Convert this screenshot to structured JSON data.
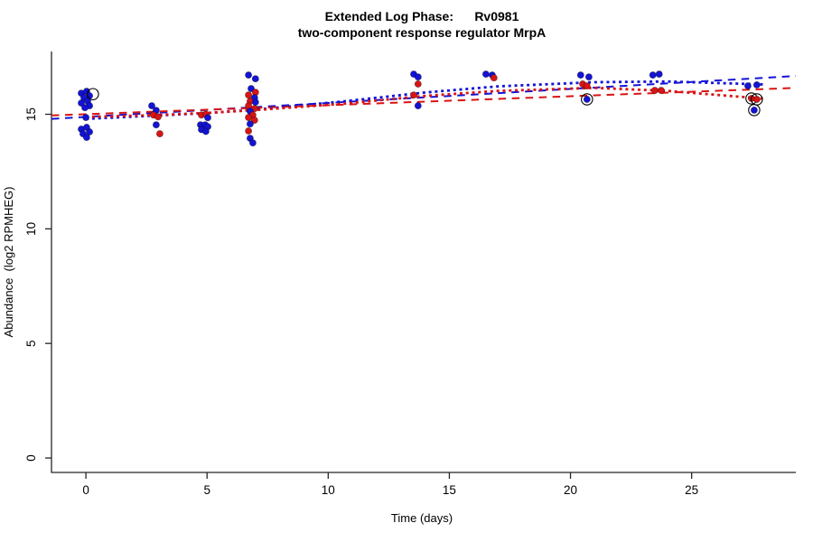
{
  "chart_data": {
    "type": "scatter",
    "title": "Extended Log Phase:      Rv0981",
    "subtitle": "two-component response regulator MrpA",
    "xlabel": "Time (days)",
    "ylabel": "Abundance  (log2 RPMHEG)",
    "xticks": [
      0,
      5,
      10,
      15,
      20,
      25
    ],
    "yticks": [
      0,
      5,
      10,
      15
    ],
    "xlim": [
      -1.42,
      29.3
    ],
    "ylim": [
      -0.63,
      17.74
    ],
    "grid": false,
    "legend": "none",
    "colors": {
      "blue": "#1313d6",
      "red": "#d91414",
      "axis": "#262626",
      "flag_ring": "#000000"
    },
    "points_legend": "each point = [day, log2 abundance, flag]; flag: b=blue dot, r=red dot, o=open circle marker, bo/ro=dot with black open-circle flag",
    "points": [
      [
        -0.19,
        15.92,
        "b"
      ],
      [
        0.03,
        16.0,
        "b"
      ],
      [
        0.15,
        15.81,
        "b"
      ],
      [
        -0.08,
        15.73,
        "b"
      ],
      [
        0.07,
        15.57,
        "b"
      ],
      [
        -0.19,
        15.49,
        "b"
      ],
      [
        0.15,
        15.37,
        "b"
      ],
      [
        -0.04,
        15.29,
        "b"
      ],
      [
        0.29,
        15.88,
        "o"
      ],
      [
        0.0,
        14.86,
        "b"
      ],
      [
        -0.19,
        14.35,
        "b"
      ],
      [
        0.03,
        14.43,
        "b"
      ],
      [
        0.15,
        14.23,
        "b"
      ],
      [
        -0.12,
        14.15,
        "b"
      ],
      [
        0.03,
        13.99,
        "b"
      ],
      [
        2.72,
        15.37,
        "b"
      ],
      [
        2.9,
        15.17,
        "b"
      ],
      [
        2.79,
        14.97,
        "r"
      ],
      [
        2.98,
        14.89,
        "r"
      ],
      [
        2.9,
        14.54,
        "b"
      ],
      [
        3.05,
        14.15,
        "r"
      ],
      [
        4.77,
        14.97,
        "r"
      ],
      [
        4.95,
        15.0,
        "r"
      ],
      [
        5.03,
        14.85,
        "b"
      ],
      [
        4.73,
        14.54,
        "b"
      ],
      [
        4.92,
        14.54,
        "b"
      ],
      [
        5.03,
        14.46,
        "b"
      ],
      [
        4.77,
        14.33,
        "b"
      ],
      [
        4.95,
        14.25,
        "b"
      ],
      [
        6.71,
        16.71,
        "b"
      ],
      [
        7.0,
        16.55,
        "b"
      ],
      [
        6.82,
        16.12,
        "b"
      ],
      [
        7.0,
        15.96,
        "r"
      ],
      [
        6.71,
        15.84,
        "r"
      ],
      [
        6.96,
        15.72,
        "b"
      ],
      [
        6.78,
        15.57,
        "r"
      ],
      [
        7.0,
        15.53,
        "b"
      ],
      [
        6.71,
        15.37,
        "r"
      ],
      [
        6.96,
        15.25,
        "r"
      ],
      [
        6.78,
        15.13,
        "b"
      ],
      [
        6.89,
        14.97,
        "r"
      ],
      [
        6.71,
        14.86,
        "r"
      ],
      [
        6.96,
        14.74,
        "r"
      ],
      [
        6.78,
        14.58,
        "b"
      ],
      [
        6.71,
        14.27,
        "r"
      ],
      [
        6.78,
        13.95,
        "b"
      ],
      [
        6.89,
        13.75,
        "b"
      ],
      [
        13.53,
        16.75,
        "b"
      ],
      [
        13.71,
        16.63,
        "b"
      ],
      [
        13.71,
        16.32,
        "r"
      ],
      [
        13.53,
        15.84,
        "r"
      ],
      [
        13.71,
        15.37,
        "b"
      ],
      [
        16.51,
        16.75,
        "b"
      ],
      [
        16.77,
        16.71,
        "b"
      ],
      [
        16.84,
        16.59,
        "r"
      ],
      [
        20.42,
        16.71,
        "b"
      ],
      [
        20.76,
        16.63,
        "b"
      ],
      [
        20.5,
        16.32,
        "r"
      ],
      [
        20.68,
        16.24,
        "r"
      ],
      [
        20.68,
        15.65,
        "bo"
      ],
      [
        23.66,
        16.75,
        "b"
      ],
      [
        23.4,
        16.71,
        "b"
      ],
      [
        23.48,
        16.04,
        "r"
      ],
      [
        23.74,
        16.04,
        "r"
      ],
      [
        27.32,
        16.24,
        "b"
      ],
      [
        27.69,
        16.28,
        "b"
      ],
      [
        27.47,
        15.69,
        "ro"
      ],
      [
        27.69,
        15.65,
        "ro"
      ],
      [
        27.58,
        15.18,
        "bo"
      ]
    ],
    "fit_lines": [
      {
        "name": "blue-linear-fit",
        "color": "blue",
        "style": "longdash",
        "x": [
          -1.42,
          29.3
        ],
        "y": [
          14.8,
          16.67
        ]
      },
      {
        "name": "red-linear-fit",
        "color": "red",
        "style": "longdash",
        "x": [
          -1.42,
          29.3
        ],
        "y": [
          14.95,
          16.15
        ]
      },
      {
        "name": "blue-smooth-fit",
        "color": "blue",
        "style": "dotted",
        "x": [
          0,
          3,
          5,
          7,
          10.5,
          14,
          17,
          21,
          24,
          28
        ],
        "y": [
          14.8,
          14.95,
          15.05,
          15.2,
          15.55,
          15.95,
          16.22,
          16.4,
          16.43,
          16.3
        ]
      },
      {
        "name": "red-smooth-fit",
        "color": "red",
        "style": "dotted",
        "x": [
          0,
          3,
          5,
          7,
          10.5,
          14,
          17,
          21,
          24,
          28
        ],
        "y": [
          14.88,
          14.97,
          15.06,
          15.18,
          15.45,
          15.8,
          16.02,
          16.15,
          16.02,
          15.68
        ]
      }
    ]
  }
}
